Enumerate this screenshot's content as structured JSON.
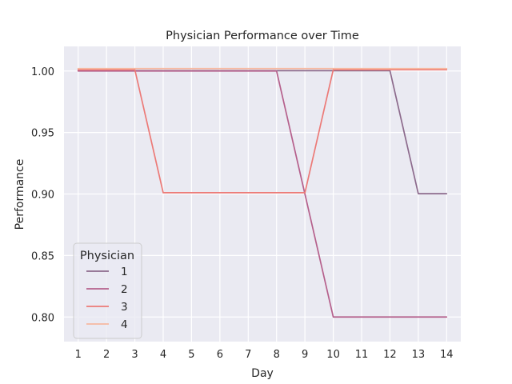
{
  "chart_data": {
    "type": "line",
    "title": "Physician Performance over Time",
    "xlabel": "Day",
    "ylabel": "Performance",
    "x": [
      1,
      2,
      3,
      4,
      5,
      6,
      7,
      8,
      9,
      10,
      11,
      12,
      13,
      14
    ],
    "xlim": [
      0.5,
      14.5
    ],
    "ylim": [
      0.78,
      1.02
    ],
    "yticks": [
      0.8,
      0.85,
      0.9,
      0.95,
      1.0
    ],
    "ytick_labels": [
      "0.80",
      "0.85",
      "0.90",
      "0.95",
      "1.00"
    ],
    "xtick_labels": [
      "1",
      "2",
      "3",
      "4",
      "5",
      "6",
      "7",
      "8",
      "9",
      "10",
      "11",
      "12",
      "13",
      "14"
    ],
    "grid": true,
    "legend": {
      "title": "Physician",
      "placement": "lower-left"
    },
    "series": [
      {
        "name": "1",
        "color": "#8c6a8c",
        "values": [
          1.0,
          1.0,
          1.0,
          1.0,
          1.0,
          1.0,
          1.0,
          1.0,
          1.0,
          1.0,
          1.0,
          1.0,
          0.9,
          0.9
        ]
      },
      {
        "name": "2",
        "color": "#b5608c",
        "values": [
          1.0,
          1.0,
          1.0,
          1.0,
          1.0,
          1.0,
          1.0,
          1.0,
          0.9,
          0.8,
          0.8,
          0.8,
          0.8,
          0.8
        ]
      },
      {
        "name": "3",
        "color": "#ec7a77",
        "values": [
          1.0,
          1.0,
          1.0,
          0.9,
          0.9,
          0.9,
          0.9,
          0.9,
          0.9,
          1.0,
          1.0,
          1.0,
          1.0,
          1.0
        ]
      },
      {
        "name": "4",
        "color": "#f6b9a1",
        "values": [
          1.0,
          1.0,
          1.0,
          1.0,
          1.0,
          1.0,
          1.0,
          1.0,
          1.0,
          1.0,
          1.0,
          1.0,
          1.0,
          1.0
        ]
      }
    ]
  }
}
